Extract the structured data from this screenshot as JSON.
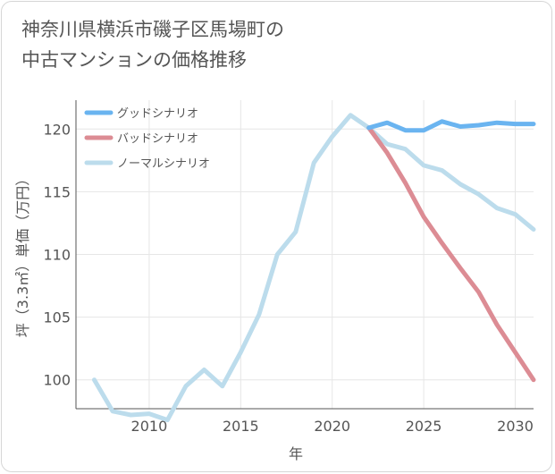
{
  "chart_data": {
    "type": "line",
    "title_line1": "神奈川県横浜市磯子区馬場町の",
    "title_line2": "中古マンションの価格推移",
    "xlabel": "年",
    "ylabel": "坪（3.3㎡）単価（万円）",
    "xlim": [
      2006,
      2031
    ],
    "ylim": [
      97.7,
      122.3
    ],
    "x_ticks": [
      2010,
      2015,
      2020,
      2025,
      2030
    ],
    "y_ticks": [
      100,
      105,
      110,
      115,
      120
    ],
    "legend_position": "top-left",
    "series": [
      {
        "name": "グッドシナリオ",
        "color": "#6ab4f0",
        "x": [
          2022,
          2023,
          2024,
          2025,
          2026,
          2027,
          2028,
          2029,
          2030,
          2031
        ],
        "values": [
          120.1,
          120.5,
          119.9,
          119.9,
          120.6,
          120.2,
          120.3,
          120.5,
          120.4,
          120.4
        ]
      },
      {
        "name": "バッドシナリオ",
        "color": "#dc8c94",
        "x": [
          2022,
          2023,
          2024,
          2025,
          2026,
          2027,
          2028,
          2029,
          2030,
          2031
        ],
        "values": [
          120.1,
          118.1,
          115.7,
          113.0,
          110.9,
          108.9,
          107.0,
          104.4,
          102.2,
          100.0
        ]
      },
      {
        "name": "ノーマルシナリオ",
        "color": "#bcdcec",
        "x": [
          2007,
          2008,
          2009,
          2010,
          2011,
          2012,
          2013,
          2014,
          2015,
          2016,
          2017,
          2018,
          2019,
          2020,
          2021,
          2022,
          2023,
          2024,
          2025,
          2026,
          2027,
          2028,
          2029,
          2030,
          2031
        ],
        "values": [
          100.0,
          97.5,
          97.2,
          97.3,
          96.8,
          99.5,
          100.8,
          99.5,
          102.2,
          105.2,
          110.0,
          111.8,
          117.3,
          119.4,
          121.1,
          120.1,
          118.8,
          118.4,
          117.1,
          116.7,
          115.6,
          114.8,
          113.7,
          113.2,
          112.0
        ]
      }
    ]
  }
}
